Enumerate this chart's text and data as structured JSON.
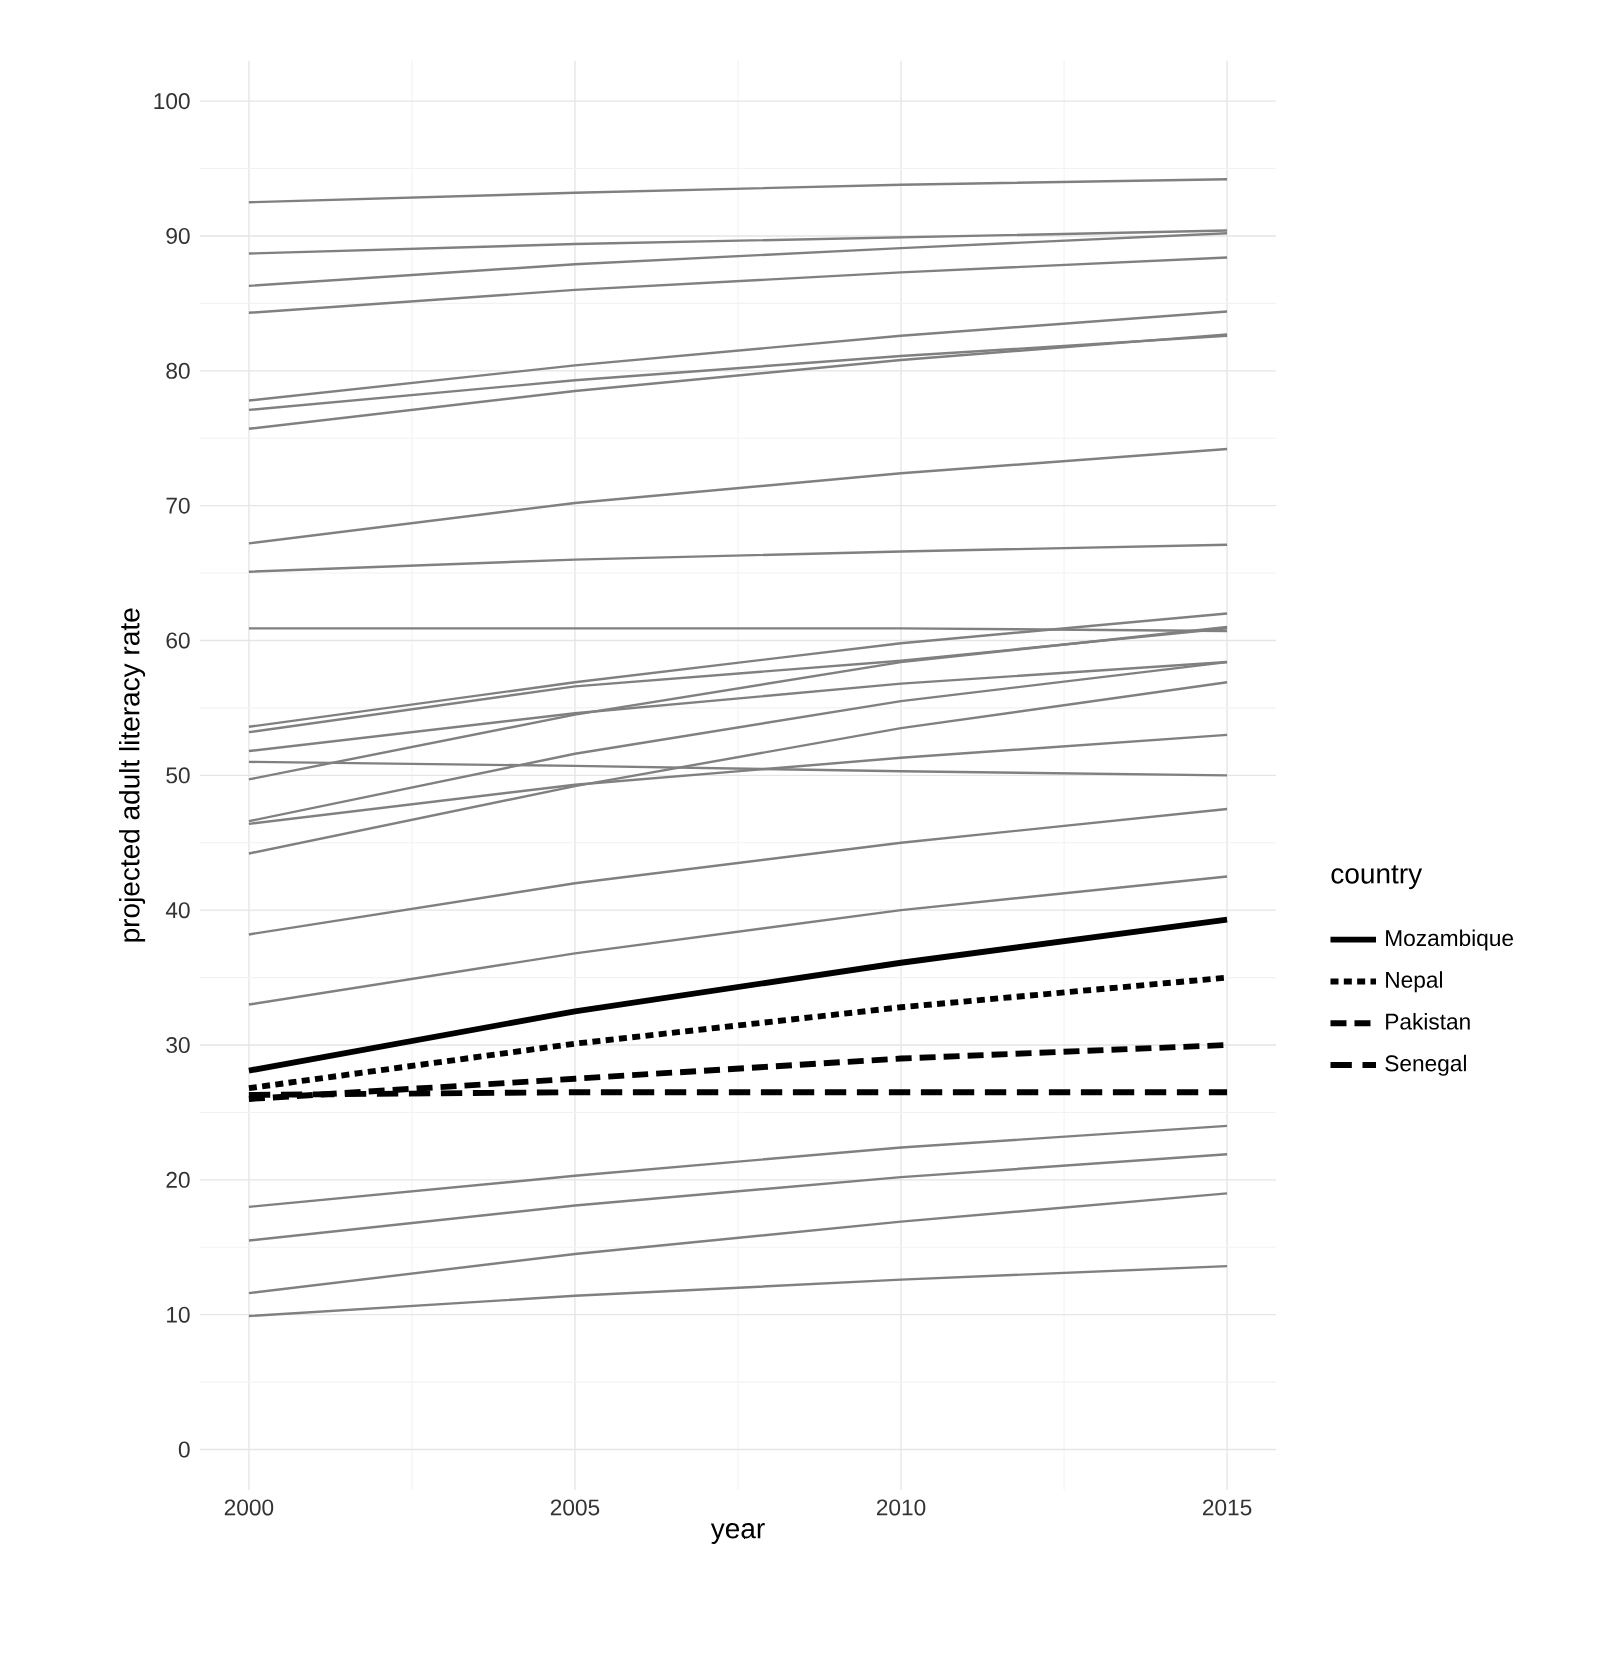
{
  "chart_data": {
    "type": "line",
    "xlabel": "year",
    "ylabel": "projected adult literacy rate",
    "legend_title": "country",
    "x": [
      2000,
      2005,
      2010,
      2015
    ],
    "xlim": [
      1999.25,
      2015.75
    ],
    "ylim": [
      -3,
      103
    ],
    "xticks": [
      2000,
      2005,
      2010,
      2015
    ],
    "yticks": [
      0,
      10,
      20,
      30,
      40,
      50,
      60,
      70,
      80,
      90,
      100
    ],
    "grid": true,
    "legend": "right",
    "marker": "none",
    "series": [
      {
        "color": "#808080",
        "values": [
          92.5,
          93.2,
          93.8,
          94.2
        ]
      },
      {
        "color": "#808080",
        "values": [
          88.7,
          89.4,
          89.9,
          90.4
        ]
      },
      {
        "color": "#808080",
        "values": [
          86.3,
          87.9,
          89.1,
          90.2
        ]
      },
      {
        "color": "#808080",
        "values": [
          84.3,
          86.0,
          87.3,
          88.4
        ]
      },
      {
        "color": "#808080",
        "values": [
          77.8,
          80.4,
          82.6,
          84.4
        ]
      },
      {
        "color": "#808080",
        "values": [
          77.1,
          79.3,
          81.1,
          82.6
        ]
      },
      {
        "color": "#808080",
        "values": [
          75.7,
          78.5,
          80.8,
          82.7
        ]
      },
      {
        "color": "#808080",
        "values": [
          67.2,
          70.2,
          72.4,
          74.2
        ]
      },
      {
        "color": "#808080",
        "values": [
          65.1,
          66.0,
          66.6,
          67.1
        ]
      },
      {
        "color": "#808080",
        "values": [
          60.9,
          60.9,
          60.9,
          60.7
        ]
      },
      {
        "color": "#808080",
        "values": [
          53.6,
          56.9,
          59.8,
          62.0
        ]
      },
      {
        "color": "#808080",
        "values": [
          53.2,
          56.6,
          58.5,
          60.9
        ]
      },
      {
        "color": "#808080",
        "values": [
          51.8,
          54.6,
          56.8,
          58.4
        ]
      },
      {
        "color": "#808080",
        "values": [
          49.7,
          54.5,
          58.4,
          61.0
        ]
      },
      {
        "color": "#808080",
        "values": [
          46.6,
          51.6,
          55.5,
          58.4
        ]
      },
      {
        "color": "#808080",
        "values": [
          46.4,
          49.3,
          51.3,
          53.0
        ]
      },
      {
        "color": "#808080",
        "values": [
          51.0,
          50.7,
          50.3,
          50.0
        ]
      },
      {
        "color": "#808080",
        "values": [
          44.2,
          49.2,
          53.5,
          56.9
        ]
      },
      {
        "color": "#808080",
        "values": [
          38.2,
          42.0,
          45.0,
          47.5
        ]
      },
      {
        "color": "#808080",
        "values": [
          33.0,
          36.8,
          40.0,
          42.5
        ]
      },
      {
        "color": "#808080",
        "values": [
          18.0,
          20.3,
          22.4,
          24.0
        ]
      },
      {
        "color": "#808080",
        "values": [
          15.5,
          18.1,
          20.2,
          21.9
        ]
      },
      {
        "color": "#808080",
        "values": [
          11.6,
          14.5,
          16.9,
          19.0
        ]
      },
      {
        "color": "#808080",
        "values": [
          9.9,
          11.4,
          12.6,
          13.6
        ]
      },
      {
        "name": "Mozambique",
        "color": "#000000",
        "line_style": "solid",
        "values": [
          28.1,
          32.5,
          36.1,
          39.3
        ]
      },
      {
        "name": "Nepal",
        "color": "#000000",
        "line_style": "dotted",
        "values": [
          26.8,
          30.1,
          32.8,
          35.0
        ]
      },
      {
        "name": "Pakistan",
        "color": "#000000",
        "line_style": "dashed",
        "values": [
          26.0,
          27.5,
          29.0,
          30.0
        ]
      },
      {
        "name": "Senegal",
        "color": "#000000",
        "line_style": "dashed",
        "values": [
          26.3,
          26.5,
          26.5,
          26.5
        ]
      }
    ]
  }
}
